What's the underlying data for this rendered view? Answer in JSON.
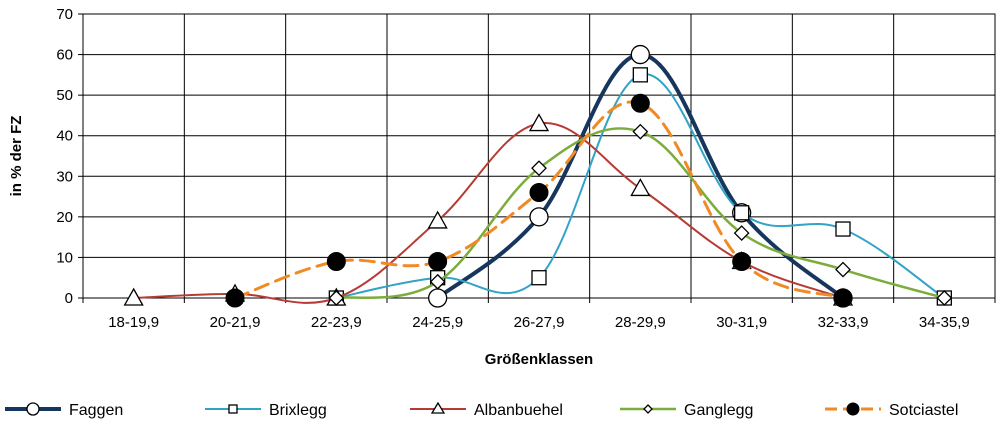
{
  "chart_data": {
    "type": "line",
    "xlabel": "Größenklassen",
    "ylabel": "in % der FZ",
    "categories": [
      "18-19,9",
      "20-21,9",
      "22-23,9",
      "24-25,9",
      "26-27,9",
      "28-29,9",
      "30-31,9",
      "32-33,9",
      "34-35,9"
    ],
    "ylim": [
      0,
      70
    ],
    "yticks": [
      0,
      10,
      20,
      30,
      40,
      50,
      60,
      70
    ],
    "grid": true,
    "legend_position": "bottom",
    "series": [
      {
        "name": "Faggen",
        "color": "#17365d",
        "marker": "open-circle",
        "dash": "solid",
        "width": 4,
        "values": [
          null,
          null,
          null,
          0,
          20,
          60,
          21,
          0,
          null
        ]
      },
      {
        "name": "Brixlegg",
        "color": "#31a3c6",
        "marker": "open-square",
        "dash": "solid",
        "width": 2,
        "values": [
          null,
          null,
          0,
          5,
          5,
          55,
          21,
          17,
          0
        ]
      },
      {
        "name": "Albanbuehel",
        "color": "#b83a35",
        "marker": "open-triangle",
        "dash": "solid",
        "width": 2,
        "values": [
          0,
          1,
          0,
          19,
          43,
          27,
          9,
          0,
          null
        ]
      },
      {
        "name": "Ganglegg",
        "color": "#7cac3c",
        "marker": "open-diamond",
        "dash": "solid",
        "width": 2.5,
        "values": [
          null,
          null,
          0,
          4,
          32,
          41,
          16,
          7,
          0
        ]
      },
      {
        "name": "Sotciastel",
        "color": "#f08a24",
        "marker": "filled-circle",
        "dash": "dashed",
        "width": 3,
        "values": [
          null,
          0,
          9,
          9,
          26,
          48,
          9,
          0,
          null
        ]
      }
    ]
  }
}
